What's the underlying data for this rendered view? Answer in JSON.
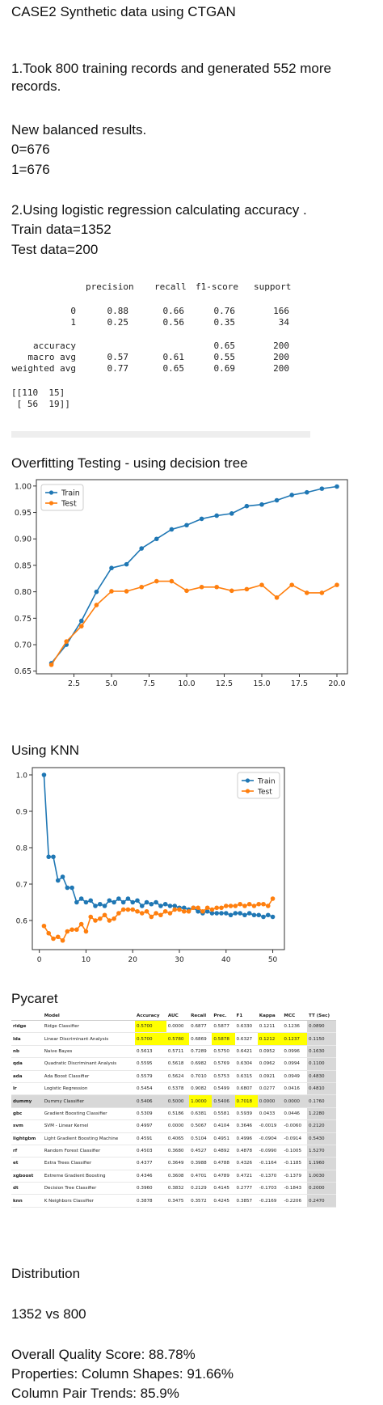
{
  "header": {
    "title": "CASE2 Synthetic data using CTGAN",
    "step1": "1.Took 800 training records and generated 552 more records.",
    "balanced_title": "New balanced results.",
    "class0": "0=676",
    "class1": "1=676",
    "step2": "2.Using logistic regression calculating accuracy .",
    "train": "Train data=1352",
    "test": "Test data=200"
  },
  "report": {
    "headers": [
      "precision",
      "recall",
      "f1-score",
      "support"
    ],
    "rows": [
      {
        "label": "0",
        "precision": "0.88",
        "recall": "0.66",
        "f1": "0.76",
        "support": "166"
      },
      {
        "label": "1",
        "precision": "0.25",
        "recall": "0.56",
        "f1": "0.35",
        "support": "34"
      },
      {
        "label": "accuracy",
        "precision": "",
        "recall": "",
        "f1": "0.65",
        "support": "200"
      },
      {
        "label": "macro avg",
        "precision": "0.57",
        "recall": "0.61",
        "f1": "0.55",
        "support": "200"
      },
      {
        "label": "weighted avg",
        "precision": "0.77",
        "recall": "0.65",
        "f1": "0.69",
        "support": "200"
      }
    ],
    "matrix_line1": "[[110  15]",
    "matrix_line2": " [ 56  19]]"
  },
  "overfit": {
    "title": "Overfitting Testing - using decision tree"
  },
  "knn": {
    "title": "Using KNN"
  },
  "colors": {
    "train": "#1f77b4",
    "test": "#ff7f0e",
    "highlight": "#ffff00"
  },
  "chart_data": [
    {
      "type": "line",
      "title": "",
      "xlabel": "",
      "ylabel": "",
      "xlim": [
        0,
        20.7
      ],
      "ylim": [
        0.645,
        1.012
      ],
      "xticks": [
        "2.5",
        "5.0",
        "7.5",
        "10.0",
        "12.5",
        "15.0",
        "17.5",
        "20.0"
      ],
      "yticks": [
        "0.65",
        "0.70",
        "0.75",
        "0.80",
        "0.85",
        "0.90",
        "0.95",
        "1.00"
      ],
      "legend": "top-left",
      "x": [
        1,
        2,
        3,
        4,
        5,
        6,
        7,
        8,
        9,
        10,
        11,
        12,
        13,
        14,
        15,
        16,
        17,
        18,
        19,
        20
      ],
      "series": [
        {
          "name": "Train",
          "values": [
            0.665,
            0.7,
            0.745,
            0.8,
            0.845,
            0.852,
            0.882,
            0.9,
            0.918,
            0.926,
            0.938,
            0.944,
            0.948,
            0.962,
            0.965,
            0.973,
            0.983,
            0.988,
            0.995,
            0.999
          ]
        },
        {
          "name": "Test",
          "values": [
            0.662,
            0.706,
            0.735,
            0.775,
            0.801,
            0.801,
            0.809,
            0.82,
            0.82,
            0.802,
            0.809,
            0.809,
            0.802,
            0.805,
            0.813,
            0.789,
            0.813,
            0.798,
            0.798,
            0.813
          ]
        }
      ]
    },
    {
      "type": "line",
      "title": "",
      "xlabel": "",
      "ylabel": "",
      "xlim": [
        -1.5,
        52.5
      ],
      "ylim": [
        0.52,
        1.02
      ],
      "xticks": [
        "0",
        "10",
        "20",
        "30",
        "40",
        "50"
      ],
      "yticks": [
        "0.6",
        "0.7",
        "0.8",
        "0.9",
        "1.0"
      ],
      "legend": "top-right",
      "x": [
        1,
        2,
        3,
        4,
        5,
        6,
        7,
        8,
        9,
        10,
        11,
        12,
        13,
        14,
        15,
        16,
        17,
        18,
        19,
        20,
        21,
        22,
        23,
        24,
        25,
        26,
        27,
        28,
        29,
        30,
        31,
        32,
        33,
        34,
        35,
        36,
        37,
        38,
        39,
        40,
        41,
        42,
        43,
        44,
        45,
        46,
        47,
        48,
        49,
        50
      ],
      "series": [
        {
          "name": "Train",
          "values": [
            1.0,
            0.775,
            0.775,
            0.71,
            0.72,
            0.69,
            0.69,
            0.65,
            0.66,
            0.65,
            0.655,
            0.64,
            0.645,
            0.64,
            0.655,
            0.65,
            0.66,
            0.65,
            0.66,
            0.65,
            0.655,
            0.64,
            0.65,
            0.645,
            0.65,
            0.64,
            0.645,
            0.64,
            0.64,
            0.635,
            0.635,
            0.63,
            0.635,
            0.625,
            0.62,
            0.625,
            0.62,
            0.62,
            0.62,
            0.62,
            0.615,
            0.62,
            0.62,
            0.615,
            0.62,
            0.615,
            0.615,
            0.61,
            0.615,
            0.61
          ]
        },
        {
          "name": "Test",
          "values": [
            0.585,
            0.565,
            0.55,
            0.555,
            0.545,
            0.57,
            0.575,
            0.575,
            0.59,
            0.57,
            0.61,
            0.6,
            0.605,
            0.615,
            0.6,
            0.605,
            0.62,
            0.63,
            0.63,
            0.63,
            0.625,
            0.62,
            0.625,
            0.61,
            0.62,
            0.615,
            0.625,
            0.62,
            0.63,
            0.63,
            0.625,
            0.625,
            0.635,
            0.635,
            0.625,
            0.635,
            0.63,
            0.635,
            0.635,
            0.64,
            0.64,
            0.64,
            0.645,
            0.64,
            0.645,
            0.64,
            0.645,
            0.645,
            0.64,
            0.66
          ]
        }
      ]
    }
  ],
  "pycaret": {
    "title": "Pycaret",
    "headers": [
      "",
      "Model",
      "Accuracy",
      "AUC",
      "Recall",
      "Prec.",
      "F1",
      "Kappa",
      "MCC",
      "TT (Sec)"
    ],
    "rows": [
      [
        "ridge",
        "Ridge Classifier",
        "0.5700",
        "0.0000",
        "0.6877",
        "0.5877",
        "0.6330",
        "0.1211",
        "0.1236",
        "0.0890"
      ],
      [
        "lda",
        "Linear Discriminant Analysis",
        "0.5700",
        "0.5780",
        "0.6869",
        "0.5878",
        "0.6327",
        "0.1212",
        "0.1237",
        "0.1150"
      ],
      [
        "nb",
        "Naive Bayes",
        "0.5613",
        "0.5711",
        "0.7289",
        "0.5750",
        "0.6421",
        "0.0952",
        "0.0996",
        "0.1630"
      ],
      [
        "qda",
        "Quadratic Discriminant Analysis",
        "0.5595",
        "0.5618",
        "0.6982",
        "0.5769",
        "0.6304",
        "0.0962",
        "0.0994",
        "0.1100"
      ],
      [
        "ada",
        "Ada Boost Classifier",
        "0.5579",
        "0.5624",
        "0.7010",
        "0.5753",
        "0.6315",
        "0.0921",
        "0.0949",
        "0.4830"
      ],
      [
        "lr",
        "Logistic Regression",
        "0.5454",
        "0.5378",
        "0.9082",
        "0.5499",
        "0.6807",
        "0.0277",
        "0.0416",
        "0.4810"
      ],
      [
        "dummy",
        "Dummy Classifier",
        "0.5406",
        "0.5000",
        "1.0000",
        "0.5406",
        "0.7018",
        "0.0000",
        "0.0000",
        "0.1760"
      ],
      [
        "gbc",
        "Gradient Boosting Classifier",
        "0.5309",
        "0.5186",
        "0.6381",
        "0.5581",
        "0.5939",
        "0.0433",
        "0.0446",
        "1.2280"
      ],
      [
        "svm",
        "SVM - Linear Kernel",
        "0.4997",
        "0.0000",
        "0.5067",
        "0.4104",
        "0.3646",
        "-0.0019",
        "-0.0060",
        "0.2120"
      ],
      [
        "lightgbm",
        "Light Gradient Boosting Machine",
        "0.4591",
        "0.4065",
        "0.5104",
        "0.4951",
        "0.4996",
        "-0.0904",
        "-0.0914",
        "0.5430"
      ],
      [
        "rf",
        "Random Forest Classifier",
        "0.4503",
        "0.3680",
        "0.4527",
        "0.4892",
        "0.4878",
        "-0.0990",
        "-0.1005",
        "1.5270"
      ],
      [
        "et",
        "Extra Trees Classifier",
        "0.4377",
        "0.3649",
        "0.3988",
        "0.4788",
        "0.4326",
        "-0.1164",
        "-0.1185",
        "1.1960"
      ],
      [
        "xgboost",
        "Extreme Gradient Boosting",
        "0.4346",
        "0.3608",
        "0.4701",
        "0.4789",
        "0.4721",
        "-0.1370",
        "-0.1379",
        "1.0030"
      ],
      [
        "dt",
        "Decision Tree Classifier",
        "0.3960",
        "0.3832",
        "0.2129",
        "0.4145",
        "0.2777",
        "-0.1703",
        "-0.1843",
        "0.2000"
      ],
      [
        "knn",
        "K Neighbors Classifier",
        "0.3878",
        "0.3475",
        "0.3572",
        "0.4245",
        "0.3857",
        "-0.2169",
        "-0.2206",
        "0.2470"
      ]
    ],
    "highlights": [
      [
        0,
        2
      ],
      [
        1,
        2
      ],
      [
        1,
        3
      ],
      [
        1,
        5
      ],
      [
        1,
        7
      ],
      [
        1,
        8
      ],
      [
        6,
        4
      ],
      [
        6,
        6
      ]
    ],
    "grey_rows": [
      6
    ]
  },
  "footer": {
    "distribution": "Distribution",
    "comparison": "1352 vs 800",
    "quality": "Overall Quality Score: 88.78%",
    "shapes": "Properties: Column Shapes: 91.66%",
    "trends": "Column Pair Trends: 85.9%"
  }
}
